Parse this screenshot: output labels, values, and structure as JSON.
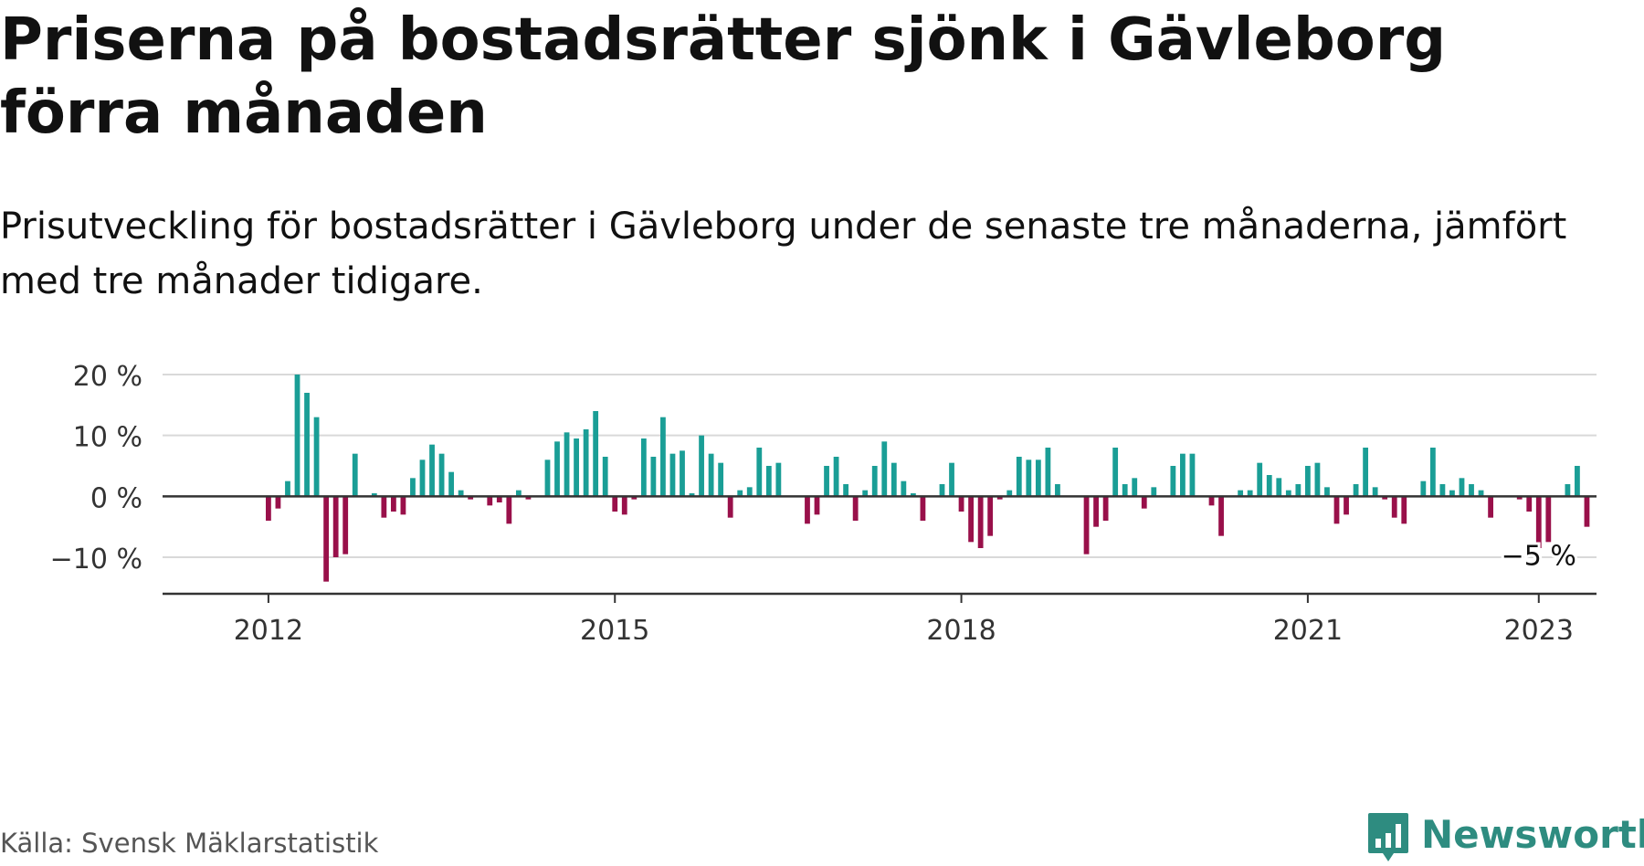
{
  "title": "Priserna på bostadsrätter sjönk i Gävleborg förra månaden",
  "subtitle": "Prisutveckling för bostadsrätter i Gävleborg under de senaste tre månaderna, jämfört med tre månader tidigare.",
  "source": "Källa: Svensk Mäklarstatistik",
  "brand": "Newsworthy",
  "colors": {
    "positive": "#1a9e96",
    "negative": "#99104a",
    "grid": "#d9d9d9",
    "axis": "#333333",
    "brand": "#2e8c80"
  },
  "chart_data": {
    "type": "bar",
    "x_start": "2012-01",
    "x_end": "2023-01",
    "xlim": [
      "2011-02",
      "2023-07"
    ],
    "ylim": [
      -16,
      20
    ],
    "y_ticks": [
      -10,
      0,
      10,
      20
    ],
    "y_tick_labels": [
      "−10 %",
      "0 %",
      "10 %",
      "20 %"
    ],
    "x_ticks": [
      "2012-01",
      "2015-01",
      "2018-01",
      "2021-01",
      "2023-01"
    ],
    "x_tick_labels": [
      "2012",
      "2015",
      "2018",
      "2021",
      "2023"
    ],
    "grid": true,
    "legend": "none",
    "annotation": {
      "text": "−5 %",
      "x": "2023-01",
      "value": -5
    },
    "values": [
      -4,
      -2,
      2.5,
      20,
      17,
      13,
      -14,
      -10,
      -9.5,
      7,
      0,
      0.5,
      -3.5,
      -2.5,
      -3,
      3,
      6,
      8.5,
      7,
      4,
      1,
      -0.5,
      0,
      -1.5,
      -1,
      -4.5,
      1,
      -0.5,
      0,
      6,
      9,
      10.5,
      9.5,
      11,
      14,
      6.5,
      -2.5,
      -3,
      -0.5,
      9.5,
      6.5,
      13,
      7,
      7.5,
      0.5,
      10,
      7,
      5.5,
      -3.5,
      1,
      1.5,
      8,
      5,
      5.5,
      0,
      0,
      -4.5,
      -3,
      5,
      6.5,
      2,
      -4,
      1,
      5,
      9,
      5.5,
      2.5,
      0.5,
      -4,
      0,
      2,
      5.5,
      -2.5,
      -7.5,
      -8.5,
      -6.5,
      -0.5,
      1,
      6.5,
      6,
      6,
      8,
      2,
      0,
      0,
      -9.5,
      -5,
      -4,
      8,
      2,
      3,
      -2,
      1.5,
      0,
      5,
      7,
      7,
      0,
      -1.5,
      -6.5,
      0,
      1,
      1,
      5.5,
      3.5,
      3,
      1,
      2,
      5,
      5.5,
      1.5,
      -4.5,
      -3,
      2,
      8,
      1.5,
      -0.5,
      -3.5,
      -4.5,
      0,
      2.5,
      8,
      2,
      1,
      3,
      2,
      1,
      -3.5,
      0,
      0,
      -0.5,
      -2.5,
      -8.5,
      -7.5,
      0,
      2,
      5,
      -5
    ]
  }
}
